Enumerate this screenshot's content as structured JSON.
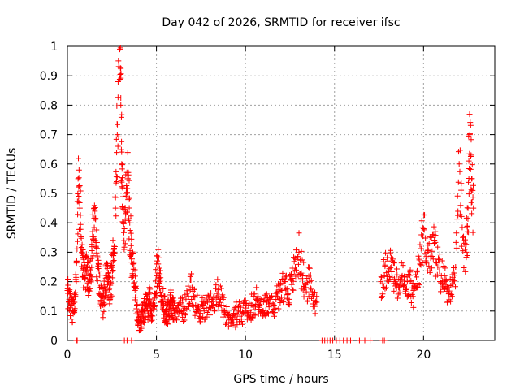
{
  "chart_data": {
    "type": "scatter",
    "title": "Day 042 of 2026, SRMTID for receiver ifsc",
    "xlabel": "GPS time / hours",
    "ylabel": "SRMTID / TECUs",
    "xlim": [
      0,
      24
    ],
    "ylim": [
      0,
      1
    ],
    "xticks": [
      0,
      5,
      10,
      15,
      20
    ],
    "xtick_labels": [
      "0",
      "5",
      "10",
      "15",
      "20"
    ],
    "yticks": [
      0,
      0.1,
      0.2,
      0.3,
      0.4,
      0.5,
      0.6,
      0.7,
      0.8,
      0.9,
      1
    ],
    "ytick_labels": [
      "0",
      "0.1",
      "0.2",
      "0.3",
      "0.4",
      "0.5",
      "0.6",
      "0.7",
      "0.8",
      "0.9",
      "1"
    ],
    "grid": true,
    "marker": "+",
    "series": [
      {
        "name": "SRMTID",
        "color": "#ff0000",
        "x": [
          0.0,
          0.1,
          0.2,
          0.3,
          0.4,
          0.5,
          0.6,
          0.7,
          0.8,
          0.9,
          1.0,
          1.1,
          1.2,
          1.3,
          1.4,
          1.5,
          1.6,
          1.7,
          1.8,
          1.9,
          2.0,
          2.1,
          2.2,
          2.3,
          2.4,
          2.5,
          2.6,
          2.7,
          2.8,
          2.9,
          3.0,
          3.05,
          3.1,
          3.2,
          3.3,
          3.4,
          3.5,
          3.6,
          3.7,
          3.8,
          3.9,
          4.0,
          4.1,
          4.2,
          4.3,
          4.4,
          4.5,
          4.6,
          4.7,
          4.8,
          4.9,
          5.0,
          5.1,
          5.2,
          5.3,
          5.4,
          5.5,
          5.6,
          5.7,
          5.8,
          5.9,
          6.0,
          6.2,
          6.4,
          6.6,
          6.8,
          7.0,
          7.2,
          7.4,
          7.6,
          7.8,
          8.0,
          8.2,
          8.4,
          8.6,
          8.8,
          9.0,
          9.2,
          9.4,
          9.6,
          9.8,
          10.0,
          10.2,
          10.4,
          10.6,
          10.8,
          11.0,
          11.2,
          11.4,
          11.6,
          11.8,
          12.0,
          12.2,
          12.4,
          12.6,
          12.8,
          13.0,
          13.2,
          13.4,
          13.6,
          13.8,
          14.0,
          17.6,
          17.8,
          18.0,
          18.2,
          18.4,
          18.6,
          18.8,
          19.0,
          19.2,
          19.4,
          19.6,
          19.8,
          20.0,
          20.2,
          20.4,
          20.6,
          20.8,
          21.0,
          21.2,
          21.4,
          21.6,
          21.8,
          22.0,
          22.2,
          22.4,
          22.5,
          22.6,
          22.7,
          22.8
        ],
        "y": [
          0.17,
          0.14,
          0.12,
          0.1,
          0.13,
          0.2,
          0.55,
          0.45,
          0.3,
          0.24,
          0.22,
          0.25,
          0.2,
          0.24,
          0.28,
          0.45,
          0.32,
          0.25,
          0.18,
          0.15,
          0.12,
          0.18,
          0.22,
          0.2,
          0.14,
          0.25,
          0.3,
          0.45,
          0.7,
          0.93,
          0.8,
          0.6,
          0.45,
          0.38,
          0.5,
          0.55,
          0.4,
          0.28,
          0.22,
          0.18,
          0.12,
          0.08,
          0.06,
          0.09,
          0.1,
          0.12,
          0.11,
          0.14,
          0.1,
          0.12,
          0.16,
          0.22,
          0.26,
          0.2,
          0.15,
          0.12,
          0.1,
          0.08,
          0.11,
          0.13,
          0.12,
          0.1,
          0.12,
          0.1,
          0.11,
          0.15,
          0.18,
          0.12,
          0.1,
          0.12,
          0.11,
          0.13,
          0.12,
          0.16,
          0.14,
          0.1,
          0.09,
          0.07,
          0.08,
          0.1,
          0.09,
          0.11,
          0.1,
          0.12,
          0.14,
          0.12,
          0.1,
          0.13,
          0.14,
          0.12,
          0.15,
          0.17,
          0.2,
          0.16,
          0.19,
          0.25,
          0.3,
          0.22,
          0.18,
          0.2,
          0.15,
          0.13,
          0.2,
          0.22,
          0.27,
          0.25,
          0.2,
          0.18,
          0.22,
          0.16,
          0.2,
          0.15,
          0.18,
          0.26,
          0.38,
          0.3,
          0.28,
          0.33,
          0.25,
          0.22,
          0.2,
          0.18,
          0.15,
          0.25,
          0.6,
          0.35,
          0.3,
          0.45,
          0.7,
          0.55,
          0.45
        ],
        "zero_x": [
          0.5,
          0.55,
          3.2,
          3.35,
          3.6,
          14.3,
          14.45,
          14.6,
          14.75,
          14.9,
          15.1,
          15.3,
          15.5,
          15.7,
          15.9,
          16.4,
          16.7,
          17.0,
          17.7,
          17.8
        ]
      }
    ]
  }
}
